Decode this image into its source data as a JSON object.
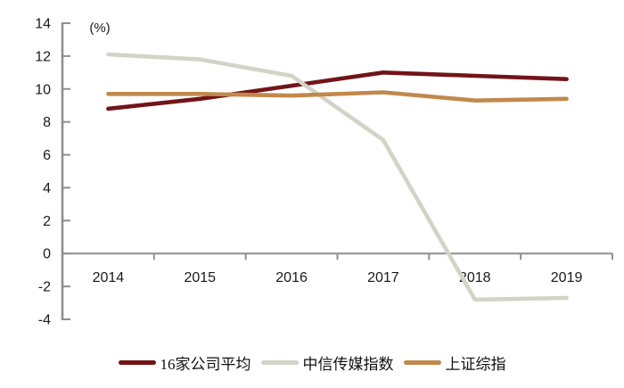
{
  "chart_data": {
    "type": "line",
    "title": "",
    "unit_label": "(%)",
    "categories": [
      "2014",
      "2015",
      "2016",
      "2017",
      "2018",
      "2019"
    ],
    "series": [
      {
        "id": "company-average",
        "name": "16家公司平均",
        "color": "#721417",
        "values": [
          8.8,
          9.4,
          10.2,
          11.0,
          10.8,
          10.6
        ]
      },
      {
        "id": "citic-media-index",
        "name": "中信传媒指数",
        "color": "#d3d3c7",
        "values": [
          12.1,
          11.8,
          10.8,
          6.9,
          -2.8,
          -2.7
        ]
      },
      {
        "id": "shanghai-composite",
        "name": "上证综指",
        "color": "#c0894b",
        "values": [
          9.7,
          9.7,
          9.6,
          9.8,
          9.3,
          9.4
        ]
      }
    ],
    "ylim": [
      -4,
      14
    ],
    "ytick_labels": [
      "14",
      "12",
      "10",
      "8",
      "6",
      "4",
      "2",
      "0",
      "-2",
      "-4"
    ],
    "grid": false,
    "legend_position": "bottom",
    "axis_color": "#8f8f8f",
    "text_color": "#1a1a1a",
    "line_width": 4.6
  }
}
